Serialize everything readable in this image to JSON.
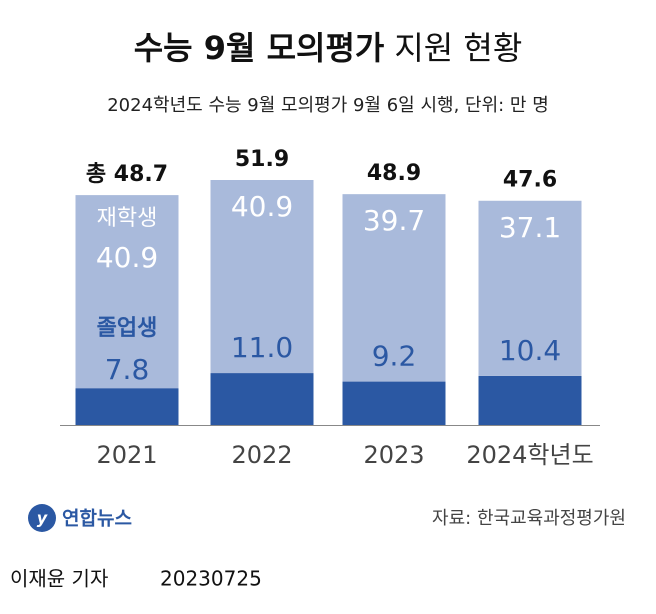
{
  "chart_data": {
    "type": "stacked-bar",
    "title": [
      "수능 9월 모의평가",
      "지원 현황"
    ],
    "subtitle": "2024학년도 수능 9월 모의평가 9월 6일 시행, 단위: 만 명",
    "categories": [
      "2021",
      "2022",
      "2023",
      "2024학년도"
    ],
    "series": [
      {
        "name": "졸업생",
        "color": "#2b58a3",
        "values": [
          7.8,
          11.0,
          9.2,
          10.4
        ],
        "value_labels": [
          "7.8",
          "11.0",
          "9.2",
          "10.4"
        ]
      },
      {
        "name": "재학생",
        "color": "#a9badb",
        "values": [
          40.9,
          40.9,
          39.7,
          37.1
        ],
        "value_labels": [
          "40.9",
          "40.9",
          "39.7",
          "37.1"
        ]
      }
    ],
    "totals": [
      48.7,
      51.9,
      48.9,
      47.6
    ],
    "total_labels": [
      "총 48.7",
      "51.9",
      "48.9",
      "47.6"
    ],
    "source": "자료: 한국교육과정평가원",
    "logo": "연합뉴스",
    "byline": "이재윤 기자",
    "date": "20230725"
  }
}
